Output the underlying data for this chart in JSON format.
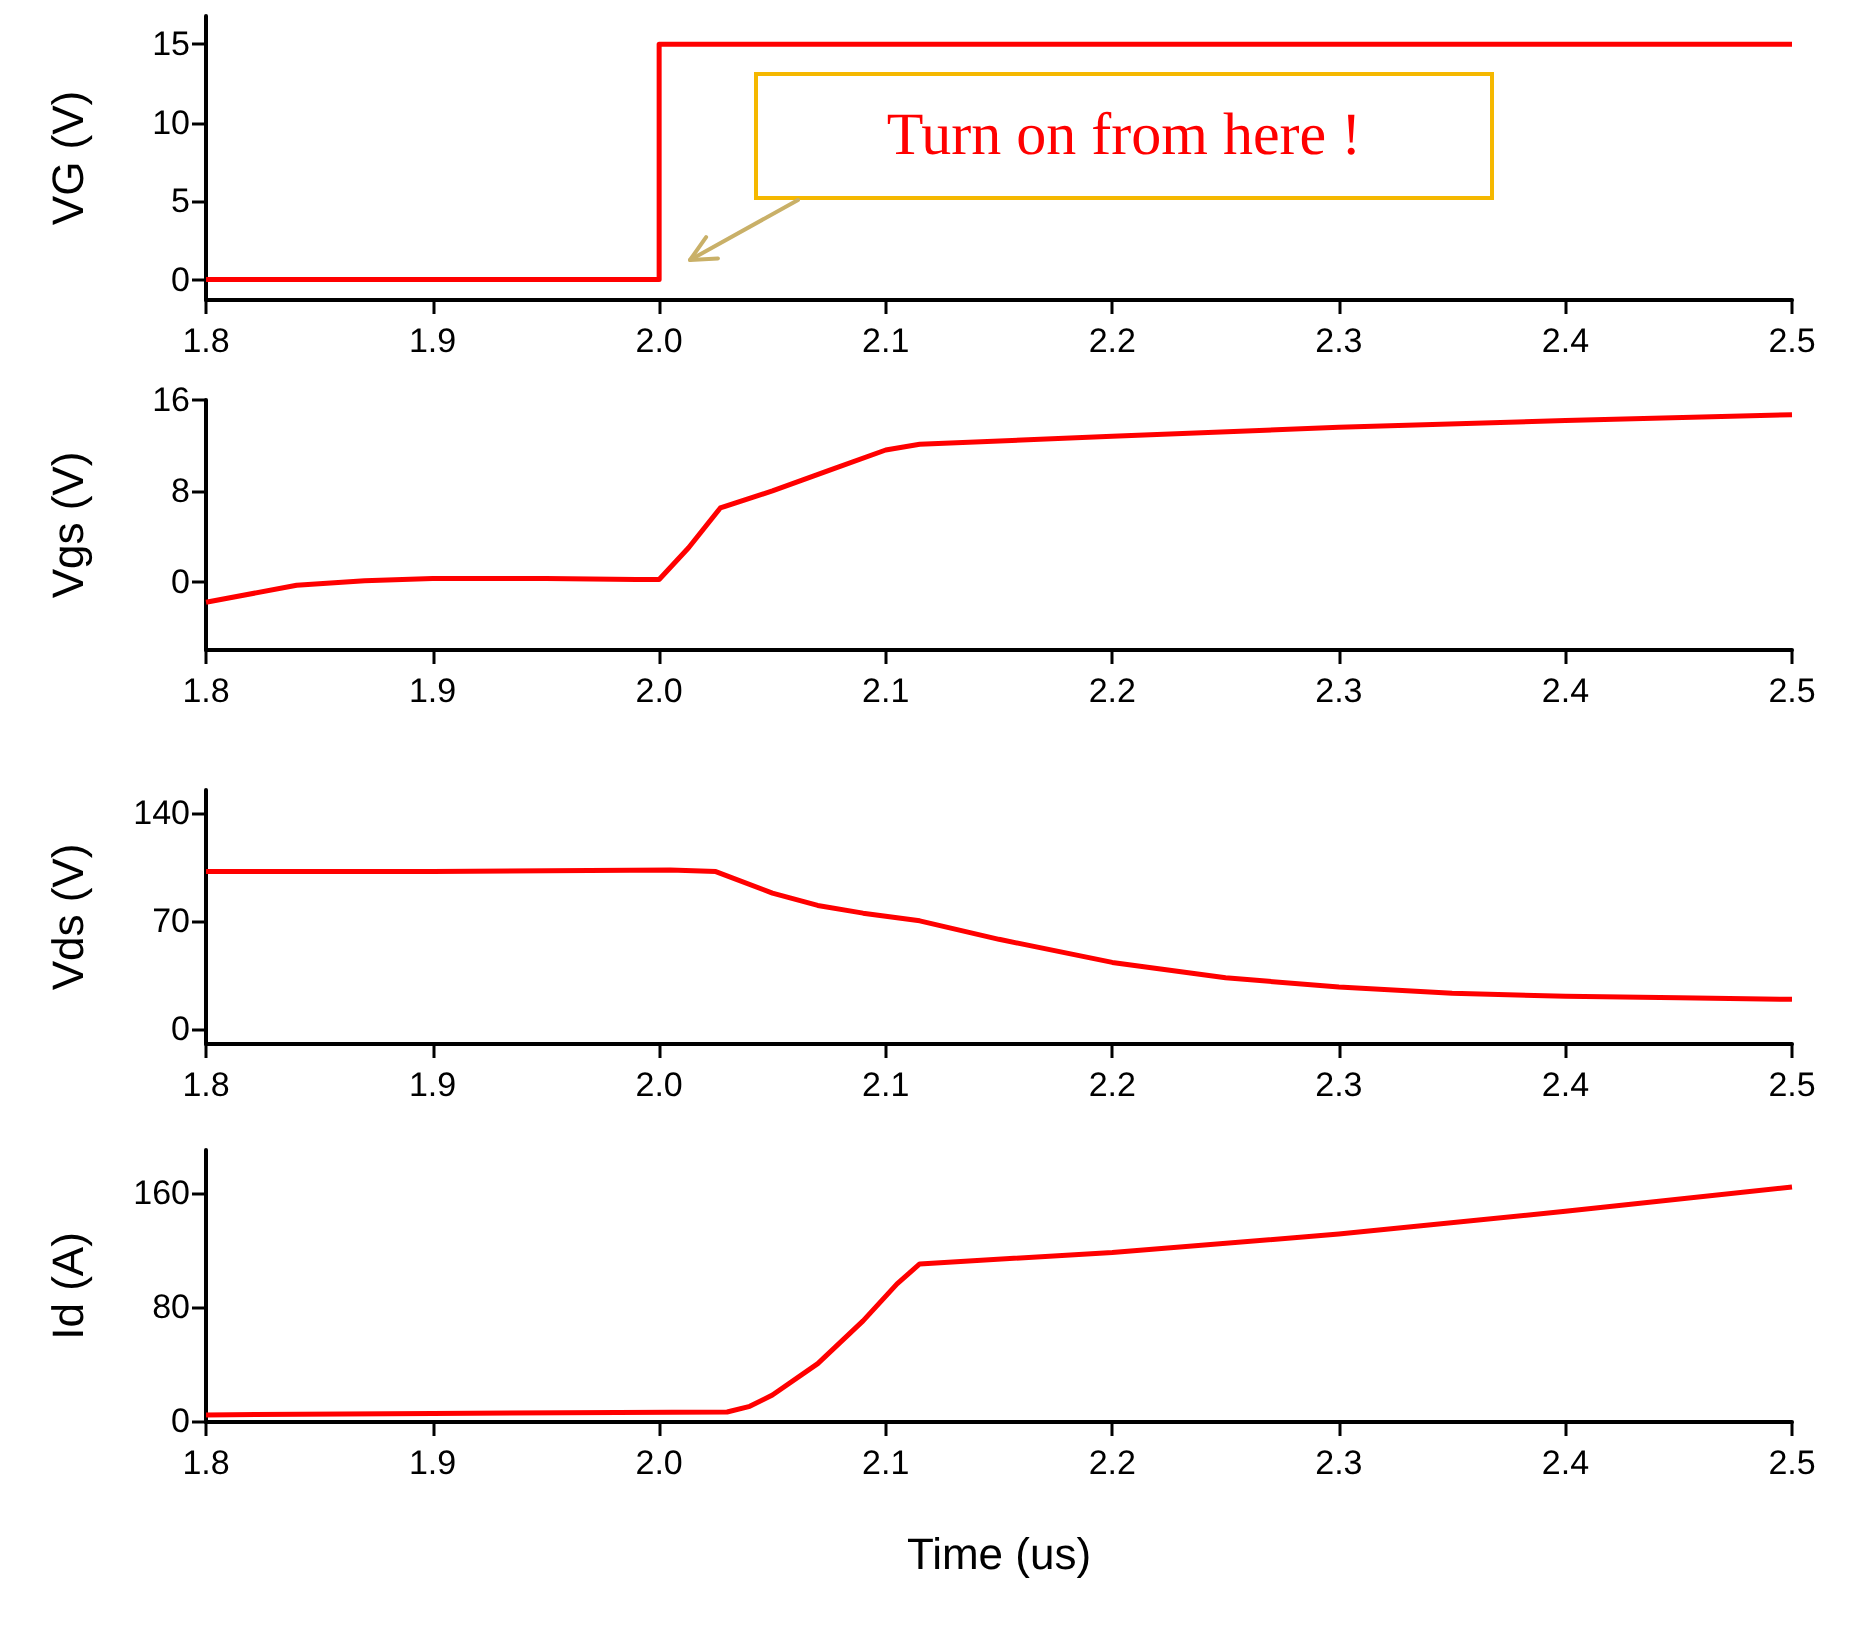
{
  "chart_data": [
    {
      "type": "line",
      "ylabel": "VG (V)",
      "x": [
        1.8,
        2.0,
        2.0,
        2.5
      ],
      "values": [
        0,
        0,
        15,
        15
      ],
      "color": "#ff0000",
      "xlim": [
        1.8,
        2.5
      ],
      "xticks": [
        {
          "value": 1.8,
          "label": "1.8"
        },
        {
          "value": 1.9,
          "label": "1.9"
        },
        {
          "value": 2.0,
          "label": "2.0"
        },
        {
          "value": 2.1,
          "label": "2.1"
        },
        {
          "value": 2.2,
          "label": "2.2"
        },
        {
          "value": 2.3,
          "label": "2.3"
        },
        {
          "value": 2.4,
          "label": "2.4"
        },
        {
          "value": 2.5,
          "label": "2.5"
        }
      ],
      "ylim": [
        -1.3,
        16.8
      ],
      "yticks": [
        0,
        5,
        10,
        15
      ],
      "annotations": [
        "Turn on from here !"
      ]
    },
    {
      "type": "line",
      "ylabel": "Vgs (V)",
      "x": [
        1.8,
        1.84,
        1.87,
        1.9,
        1.95,
        1.99,
        2.0,
        2.013,
        2.027,
        2.05,
        2.075,
        2.1,
        2.115,
        2.2,
        2.3,
        2.4,
        2.5
      ],
      "values": [
        -1.8,
        -0.3,
        0.1,
        0.3,
        0.3,
        0.2,
        0.2,
        3,
        6.5,
        8,
        9.8,
        11.6,
        12.1,
        12.8,
        13.6,
        14.2,
        14.7
      ],
      "color": "#ff0000",
      "xlim": [
        1.8,
        2.5
      ],
      "xticks": [
        {
          "value": 1.8,
          "label": "1.8"
        },
        {
          "value": 1.9,
          "label": "1.9"
        },
        {
          "value": 2.0,
          "label": "2.0"
        },
        {
          "value": 2.1,
          "label": "2.1"
        },
        {
          "value": 2.2,
          "label": "2.2"
        },
        {
          "value": 2.3,
          "label": "2.3"
        },
        {
          "value": 2.4,
          "label": "2.4"
        },
        {
          "value": 2.5,
          "label": "2.5"
        }
      ],
      "ylim": [
        -6,
        16
      ],
      "yticks": [
        0,
        8,
        16
      ]
    },
    {
      "type": "line",
      "ylabel": "Vds (V)",
      "x": [
        1.8,
        1.9,
        2.005,
        2.025,
        2.05,
        2.07,
        2.09,
        2.1,
        2.115,
        2.15,
        2.2,
        2.25,
        2.3,
        2.35,
        2.4,
        2.45,
        2.5
      ],
      "values": [
        102,
        102,
        103,
        102,
        88,
        80,
        75,
        73,
        70,
        58,
        43,
        33,
        27,
        23,
        21,
        20,
        19
      ],
      "color": "#ff0000",
      "xlim": [
        1.8,
        2.5
      ],
      "xticks": [
        {
          "value": 1.8,
          "label": "1.8"
        },
        {
          "value": 1.9,
          "label": "1.9"
        },
        {
          "value": 2.0,
          "label": "2.0"
        },
        {
          "value": 2.1,
          "label": "2.1"
        },
        {
          "value": 2.2,
          "label": "2.2"
        },
        {
          "value": 2.3,
          "label": "2.3"
        },
        {
          "value": 2.4,
          "label": "2.4"
        },
        {
          "value": 2.5,
          "label": "2.5"
        }
      ],
      "ylim": [
        -10,
        155
      ],
      "yticks": [
        0,
        70,
        140
      ]
    },
    {
      "type": "line",
      "ylabel": "Id (A)",
      "xlabel": "Time (us)",
      "x": [
        1.8,
        1.9,
        2.03,
        2.04,
        2.05,
        2.07,
        2.09,
        2.105,
        2.115,
        2.2,
        2.3,
        2.4,
        2.5
      ],
      "values": [
        4,
        5,
        6,
        10,
        18,
        40,
        70,
        96,
        110,
        118,
        131,
        147,
        164
      ],
      "color": "#ff0000",
      "xlim": [
        1.8,
        2.5
      ],
      "xticks": [
        {
          "value": 1.8,
          "label": "1.8"
        },
        {
          "value": 1.9,
          "label": "1.9"
        },
        {
          "value": 2.0,
          "label": "2.0"
        },
        {
          "value": 2.1,
          "label": "2.1"
        },
        {
          "value": 2.2,
          "label": "2.2"
        },
        {
          "value": 2.3,
          "label": "2.3"
        },
        {
          "value": 2.4,
          "label": "2.4"
        },
        {
          "value": 2.5,
          "label": "2.5"
        }
      ],
      "ylim": [
        -1,
        190
      ],
      "yticks": [
        0,
        80,
        160
      ]
    }
  ]
}
